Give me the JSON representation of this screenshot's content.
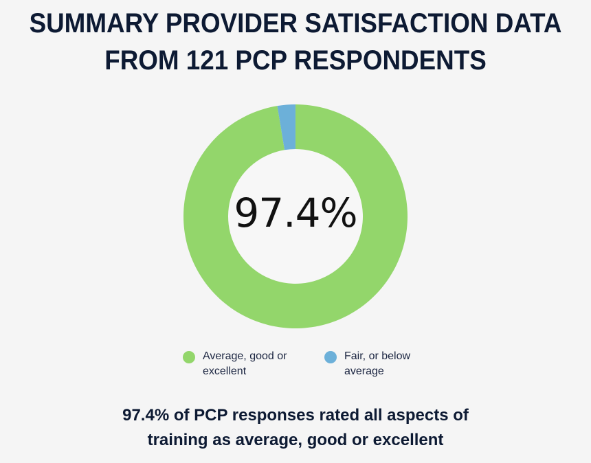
{
  "title": {
    "line1": "SUMMARY PROVIDER SATISFACTION DATA",
    "line2": "FROM 121 PCP RESPONDENTS"
  },
  "center_label": "97.4%",
  "legend": [
    {
      "label": "Average, good or excellent",
      "color": "#93d66b"
    },
    {
      "label": "Fair, or below average",
      "color": "#6cb0d9"
    }
  ],
  "summary": {
    "line1": "97.4% of PCP responses rated all aspects of",
    "line2": "training as average, good or excellent"
  },
  "colors": {
    "background": "#f5f5f5",
    "text": "#0d1a33",
    "green": "#93d66b",
    "blue": "#6cb0d9"
  },
  "chart_data": {
    "type": "pie",
    "subtype": "donut",
    "title": "SUMMARY PROVIDER SATISFACTION DATA FROM 121 PCP RESPONDENTS",
    "categories": [
      "Average, good or excellent",
      "Fair, or below average"
    ],
    "values": [
      97.4,
      2.6
    ],
    "unit": "%",
    "center_annotation": "97.4%",
    "legend_position": "bottom",
    "n_respondents": 121,
    "caption": "97.4% of PCP responses rated all aspects of training as average, good or excellent"
  }
}
